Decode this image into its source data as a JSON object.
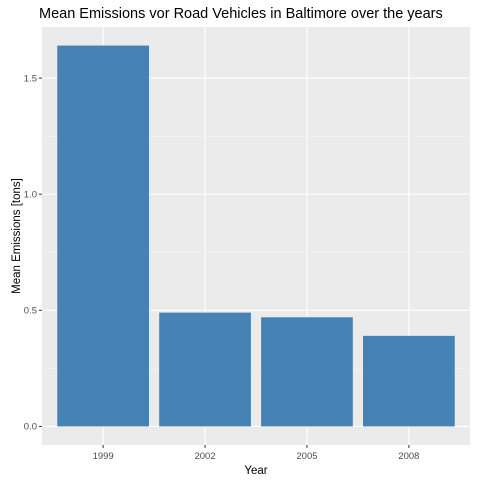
{
  "chart_data": {
    "type": "bar",
    "title": "Mean Emissions vor Road Vehicles in Baltimore over the years",
    "xlabel": "Year",
    "ylabel": "Mean Emissions [tons]",
    "categories": [
      "1999",
      "2002",
      "2005",
      "2008"
    ],
    "values": [
      1.64,
      0.49,
      0.47,
      0.39
    ],
    "ylim": [
      -0.08,
      1.72
    ],
    "yticks": [
      0.0,
      0.5,
      1.0,
      1.5
    ],
    "ytick_labels": [
      "0.0",
      "0.5",
      "1.0",
      "1.5"
    ],
    "grid": true,
    "legend": "none",
    "colors": {
      "bar": "#4682B4",
      "panel_background": "#EBEBEB",
      "grid_major": "#FFFFFF",
      "grid_minor": "#F5F5F5",
      "tick_text": "#4D4D4D",
      "tick_mark": "#333333"
    }
  }
}
